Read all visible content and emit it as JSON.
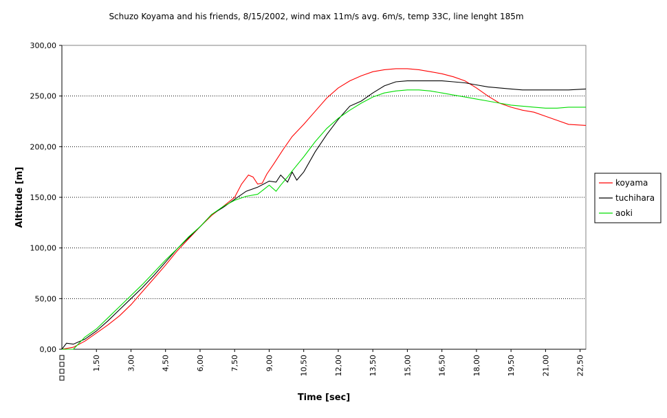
{
  "chart_data": {
    "type": "line",
    "title": "Schuzo Koyama and his friends, 8/15/2002, wind max 11m/s avg. 6m/s, temp 33C, line lenght 185m",
    "xlabel": "Time [sec]",
    "ylabel": "Altitude [m]",
    "xlim": [
      0,
      22.75
    ],
    "ylim": [
      0,
      300
    ],
    "x_ticks": [
      1.5,
      3.0,
      4.5,
      6.0,
      7.5,
      9.0,
      10.5,
      12.0,
      13.5,
      15.0,
      16.5,
      18.0,
      19.5,
      21.0,
      22.5
    ],
    "x_tick_labels": [
      "1,50",
      "3,00",
      "4,50",
      "6,00",
      "7,50",
      "9,00",
      "10,50",
      "12,00",
      "13,50",
      "15,00",
      "16,50",
      "18,00",
      "19,50",
      "21,00",
      "22,50"
    ],
    "y_ticks": [
      0,
      50,
      100,
      150,
      200,
      250,
      300
    ],
    "y_tick_labels": [
      "0,00",
      "50,00",
      "100,00",
      "150,00",
      "200,00",
      "250,00",
      "300,00"
    ],
    "grid": "horizontal",
    "legend_position": "right",
    "series": [
      {
        "name": "koyama",
        "color": "#ff0000",
        "x": [
          0,
          0.5,
          1.0,
          1.5,
          2.0,
          2.5,
          3.0,
          3.5,
          4.0,
          4.5,
          5.0,
          5.5,
          6.0,
          6.5,
          7.0,
          7.5,
          7.8,
          8.1,
          8.3,
          8.5,
          8.7,
          8.9,
          9.2,
          9.6,
          10.0,
          10.5,
          11.0,
          11.5,
          12.0,
          12.5,
          13.0,
          13.5,
          14.0,
          14.5,
          15.0,
          15.5,
          16.0,
          16.5,
          17.0,
          17.5,
          18.0,
          18.5,
          19.0,
          19.5,
          20.0,
          20.5,
          21.0,
          21.5,
          22.0,
          22.75
        ],
        "y": [
          0,
          2,
          8,
          16,
          24,
          33,
          44,
          57,
          70,
          83,
          97,
          109,
          121,
          132,
          141,
          150,
          163,
          172,
          170,
          163,
          164,
          173,
          183,
          197,
          210,
          222,
          235,
          248,
          258,
          265,
          270,
          274,
          276,
          277,
          277,
          276,
          274,
          272,
          269,
          265,
          258,
          250,
          243,
          239,
          236,
          234,
          230,
          226,
          222,
          221
        ]
      },
      {
        "name": "tuchihara",
        "color": "#000000",
        "x": [
          0,
          0.2,
          0.5,
          1.0,
          1.5,
          2.0,
          2.5,
          3.0,
          3.5,
          4.0,
          4.5,
          5.0,
          5.5,
          6.0,
          6.5,
          7.0,
          7.5,
          8.0,
          8.5,
          9.0,
          9.3,
          9.5,
          9.8,
          10.0,
          10.2,
          10.5,
          11.0,
          11.5,
          12.0,
          12.5,
          13.0,
          13.5,
          14.0,
          14.5,
          15.0,
          15.5,
          16.0,
          16.5,
          17.0,
          17.5,
          18.0,
          18.5,
          19.0,
          19.5,
          20.0,
          20.5,
          21.0,
          21.5,
          22.0,
          22.75
        ],
        "y": [
          0,
          6,
          5,
          10,
          18,
          28,
          39,
          50,
          61,
          73,
          86,
          99,
          110,
          121,
          133,
          140,
          148,
          156,
          160,
          166,
          165,
          172,
          165,
          175,
          167,
          175,
          195,
          212,
          227,
          240,
          245,
          253,
          260,
          264,
          265,
          265,
          265,
          265,
          264,
          263,
          261,
          259,
          258,
          257,
          256,
          256,
          256,
          256,
          256,
          257
        ]
      },
      {
        "name": "aoki",
        "color": "#00dd00",
        "x": [
          0,
          0.5,
          1.0,
          1.5,
          2.0,
          2.5,
          3.0,
          3.5,
          4.0,
          4.5,
          5.0,
          5.5,
          6.0,
          6.5,
          7.0,
          7.5,
          8.0,
          8.5,
          9.0,
          9.3,
          9.5,
          9.8,
          10.0,
          10.5,
          11.0,
          11.5,
          12.0,
          12.5,
          13.0,
          13.5,
          14.0,
          14.5,
          15.0,
          15.5,
          16.0,
          16.5,
          17.0,
          17.5,
          18.0,
          18.5,
          19.0,
          19.5,
          20.0,
          20.5,
          21.0,
          21.5,
          22.0,
          22.75
        ],
        "y": [
          0,
          0,
          12,
          20,
          31,
          42,
          53,
          64,
          76,
          88,
          99,
          111,
          121,
          133,
          141,
          147,
          151,
          153,
          162,
          156,
          162,
          170,
          176,
          190,
          205,
          218,
          228,
          236,
          243,
          249,
          253,
          255,
          256,
          256,
          255,
          253,
          251,
          249,
          247,
          245,
          243,
          241,
          240,
          239,
          238,
          238,
          239,
          239
        ]
      }
    ]
  }
}
